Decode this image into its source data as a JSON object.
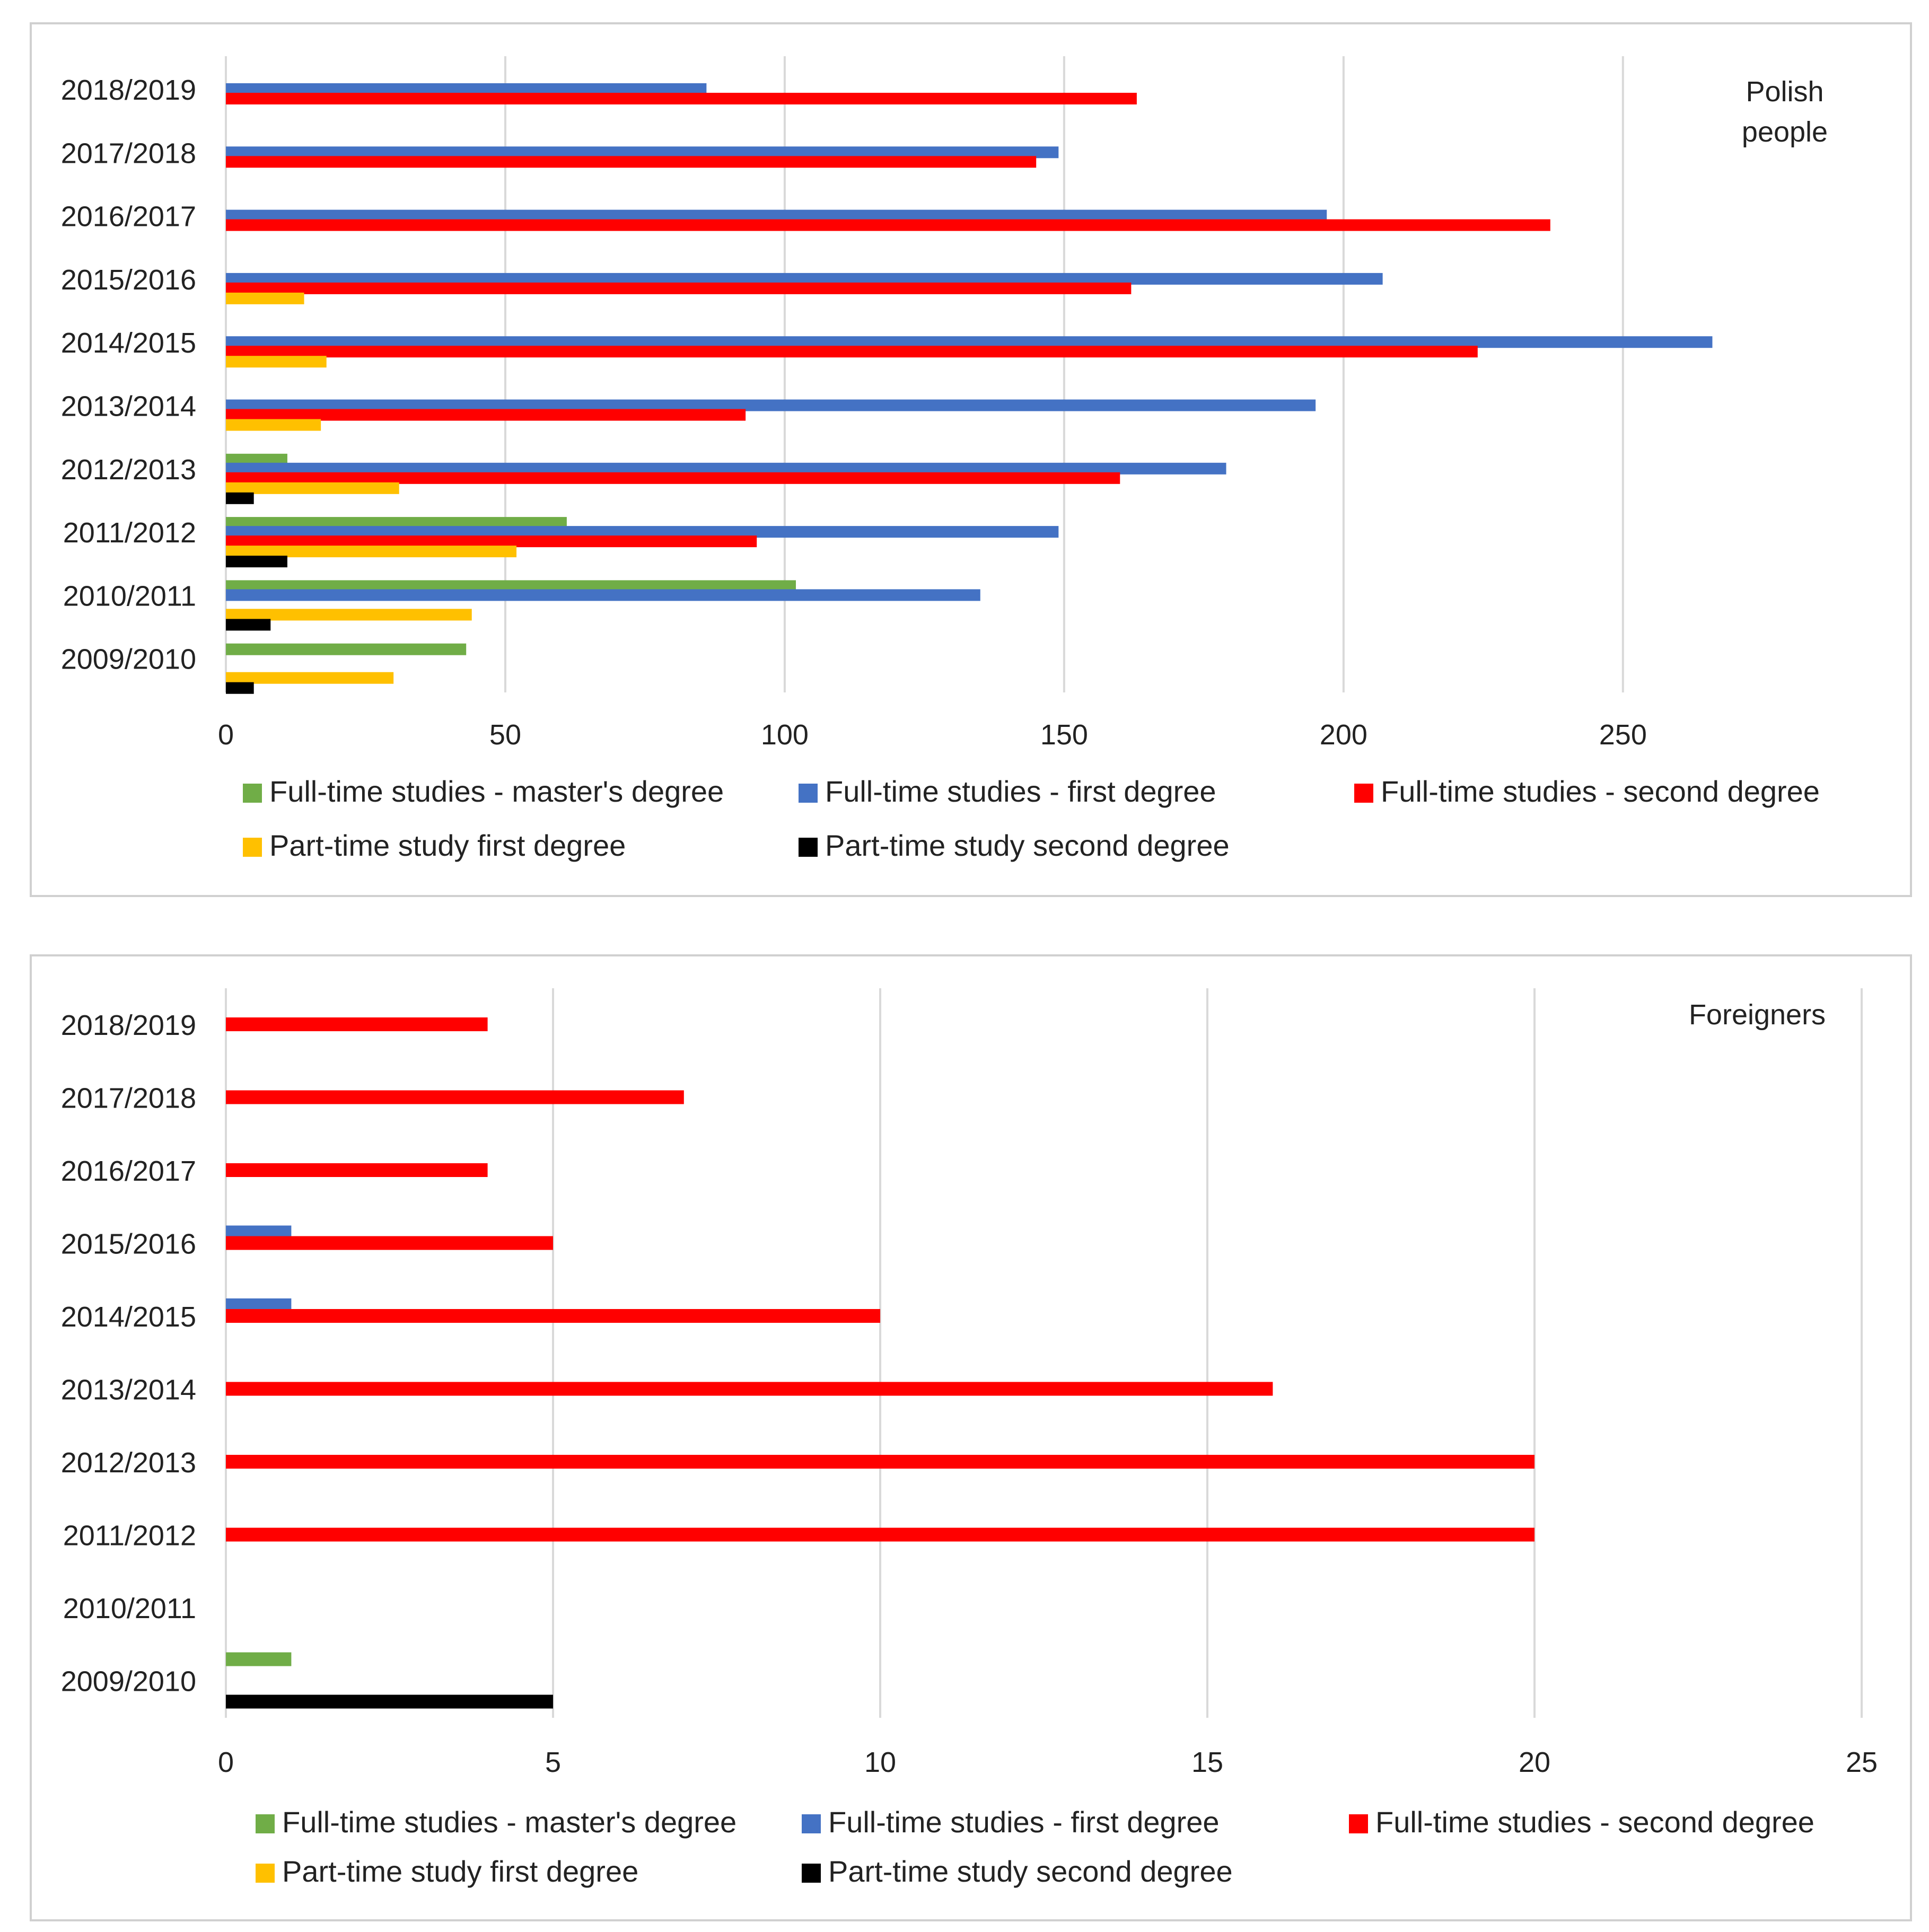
{
  "chart_data": [
    {
      "type": "bar",
      "orientation": "horizontal",
      "annotation": [
        "Polish",
        "people"
      ],
      "categories": [
        "2018/2019",
        "2017/2018",
        "2016/2017",
        "2015/2016",
        "2014/2015",
        "2013/2014",
        "2012/2013",
        "2011/2012",
        "2010/2011",
        "2009/2010"
      ],
      "xlim": [
        0,
        280
      ],
      "xticks": [
        0,
        50,
        100,
        150,
        200,
        250
      ],
      "series": [
        {
          "name": "Full-time studies - master's degree",
          "color": "#70ad47",
          "values": [
            0,
            0,
            0,
            0,
            0,
            0,
            11,
            61,
            102,
            43
          ]
        },
        {
          "name": "Full-time studies - first degree",
          "color": "#4472c4",
          "values": [
            86,
            149,
            197,
            207,
            266,
            195,
            179,
            149,
            135,
            0
          ]
        },
        {
          "name": "Full-time studies - second degree",
          "color": "#ff0000",
          "values": [
            163,
            145,
            237,
            162,
            224,
            93,
            160,
            95,
            0,
            0
          ]
        },
        {
          "name": "Part-time study first degree",
          "color": "#ffc000",
          "values": [
            0,
            0,
            0,
            14,
            18,
            17,
            31,
            52,
            44,
            30
          ]
        },
        {
          "name": "Part-time study second degree",
          "color": "#000000",
          "values": [
            0,
            0,
            0,
            0,
            0,
            0,
            5,
            11,
            8,
            5
          ]
        }
      ]
    },
    {
      "type": "bar",
      "orientation": "horizontal",
      "annotation": [
        "Foreigners"
      ],
      "categories": [
        "2018/2019",
        "2017/2018",
        "2016/2017",
        "2015/2016",
        "2014/2015",
        "2013/2014",
        "2012/2013",
        "2011/2012",
        "2010/2011",
        "2009/2010"
      ],
      "xlim": [
        0,
        25
      ],
      "xticks": [
        0,
        5,
        10,
        15,
        20,
        25
      ],
      "series": [
        {
          "name": "Full-time studies - master's degree",
          "color": "#70ad47",
          "values": [
            0,
            0,
            0,
            0,
            0,
            0,
            0,
            0,
            0,
            1
          ]
        },
        {
          "name": "Full-time studies - first degree",
          "color": "#4472c4",
          "values": [
            0,
            0,
            0,
            1,
            1,
            0,
            0,
            0,
            0,
            0
          ]
        },
        {
          "name": "Full-time studies - second degree",
          "color": "#ff0000",
          "values": [
            4,
            7,
            4,
            5,
            10,
            16,
            20,
            20,
            0,
            0
          ]
        },
        {
          "name": "Part-time study first degree",
          "color": "#ffc000",
          "values": [
            0,
            0,
            0,
            0,
            0,
            0,
            0,
            0,
            0,
            0
          ]
        },
        {
          "name": "Part-time study second degree",
          "color": "#000000",
          "values": [
            0,
            0,
            0,
            0,
            0,
            0,
            0,
            0,
            0,
            5
          ]
        }
      ]
    }
  ]
}
